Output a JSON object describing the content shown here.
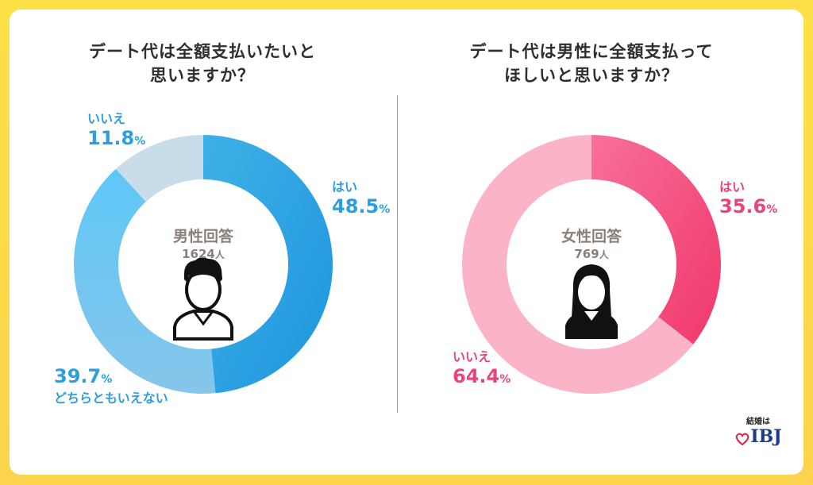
{
  "colors": {
    "blue_yes": "#2b9fe0",
    "blue_maybe": "#6fc3f0",
    "blue_no": "#c8dcea",
    "blue_text": "#2b9fe0",
    "pink_yes": "#f0487a",
    "pink_no": "#fbb3c8",
    "pink_text": "#e8457a",
    "center_text": "#8a7f79"
  },
  "left": {
    "title_line1": "デート代は全額支払いたいと",
    "title_line2": "思いますか？",
    "center_group": "男性回答",
    "center_n": "1624",
    "center_unit": "人"
  },
  "right": {
    "title_line1": "デート代は男性に全額支払って",
    "title_line2": "ほしいと思いますか？",
    "center_group": "女性回答",
    "center_n": "769",
    "center_unit": "人"
  },
  "chart_data": [
    {
      "type": "pie",
      "title": "デート代は全額支払いたいと思いますか？",
      "subtitle": "男性回答 1624人",
      "categories": [
        "はい",
        "どちらともいえない",
        "いいえ"
      ],
      "values": [
        48.5,
        39.7,
        11.8
      ],
      "labels": [
        {
          "name": "はい",
          "value": "48.5",
          "unit": "%"
        },
        {
          "name": "どちらともいえない",
          "value": "39.7",
          "unit": "%"
        },
        {
          "name": "いいえ",
          "value": "11.8",
          "unit": "%"
        }
      ]
    },
    {
      "type": "pie",
      "title": "デート代は男性に全額支払ってほしいと思いますか？",
      "subtitle": "女性回答 769人",
      "categories": [
        "はい",
        "いいえ"
      ],
      "values": [
        35.6,
        64.4
      ],
      "labels": [
        {
          "name": "はい",
          "value": "35.6",
          "unit": "%"
        },
        {
          "name": "いいえ",
          "value": "64.4",
          "unit": "%"
        }
      ]
    }
  ],
  "logo": {
    "top_text": "結婚は",
    "brand": "IBJ"
  }
}
